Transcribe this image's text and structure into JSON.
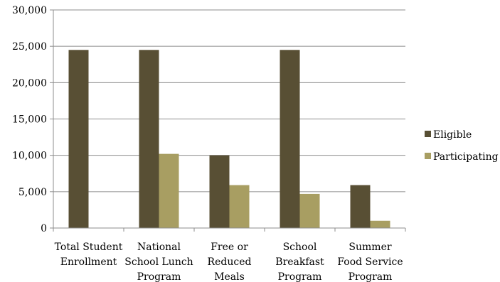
{
  "chart_data": {
    "type": "bar",
    "title": "",
    "xlabel": "",
    "ylabel": "",
    "categories": [
      [
        "Total Student",
        "Enrollment"
      ],
      [
        "National",
        "School Lunch",
        "Program"
      ],
      [
        "Free or",
        "Reduced",
        "Meals"
      ],
      [
        "School",
        "Breakfast",
        "Program"
      ],
      [
        "Summer",
        "Food Service",
        "Program"
      ]
    ],
    "series": [
      {
        "name": "Eligible",
        "color": "#584f34",
        "values": [
          24500,
          24500,
          10000,
          24500,
          5900
        ]
      },
      {
        "name": "Participating",
        "color": "#a89e62",
        "values": [
          null,
          10200,
          5900,
          4700,
          1000
        ]
      }
    ],
    "ylim": [
      0,
      30000
    ],
    "yticks": [
      0,
      5000,
      10000,
      15000,
      20000,
      25000,
      30000
    ],
    "ytick_labels": [
      "0",
      "5,000",
      "10,000",
      "15,000",
      "20,000",
      "25,000",
      "30,000"
    ],
    "grid": true,
    "legend_position": "right"
  }
}
